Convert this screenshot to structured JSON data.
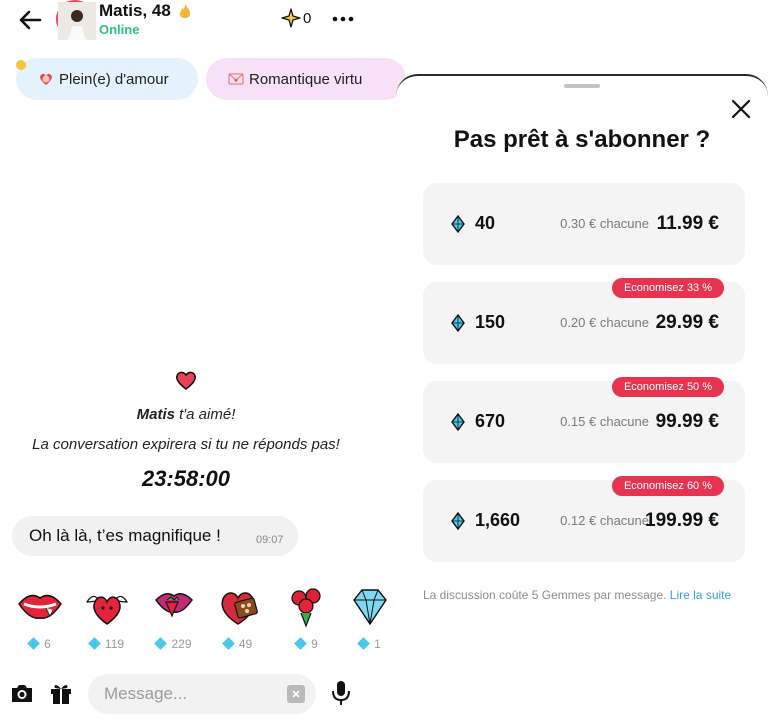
{
  "header": {
    "name": "Matis, 48",
    "status": "Online",
    "star_count": "0"
  },
  "chips": [
    {
      "label": "Plein(e) d'amour",
      "icon": "heart-emoji-icon"
    },
    {
      "label": "Romantique virtu",
      "icon": "love-letter-icon"
    }
  ],
  "conversation": {
    "liker_name": "Matis",
    "liked_text": " t'a aimé!",
    "expire_text": "La conversation expirera si tu ne réponds pas!",
    "timer": "23:58:00"
  },
  "message": {
    "text": "Oh là là, t’es magnifique !",
    "time": "09:07"
  },
  "stickers": [
    {
      "name": "lips-bite",
      "price": "6"
    },
    {
      "name": "winged-heart",
      "price": "119"
    },
    {
      "name": "lips-strawberry",
      "price": "229"
    },
    {
      "name": "chocolate-box",
      "price": "49"
    },
    {
      "name": "rose-bouquet",
      "price": "9"
    },
    {
      "name": "diamond",
      "price": "1"
    }
  ],
  "composer": {
    "placeholder": "Message..."
  },
  "sheet": {
    "title": "Pas prêt à s'abonner ?",
    "packs": [
      {
        "qty": "40",
        "each": "0.30 € chacune",
        "price": "11.99 €",
        "badge": ""
      },
      {
        "qty": "150",
        "each": "0.20 € chacune",
        "price": "29.99 €",
        "badge": "Economisez 33 %"
      },
      {
        "qty": "670",
        "each": "0.15 € chacune",
        "price": "99.99 €",
        "badge": "Economisez 50 %"
      },
      {
        "qty": "1,660",
        "each": "0.12 € chacune",
        "price": "199.99 €",
        "badge": "Economisez 60 %"
      }
    ],
    "footer_text": "La discussion coûte 5 Gemmes par message.",
    "footer_link": "Lire la suite"
  },
  "colors": {
    "accent_red": "#e53350",
    "online_green": "#2ec27e",
    "link_blue": "#3c9be0",
    "gem_blue": "#4cc7ec"
  }
}
